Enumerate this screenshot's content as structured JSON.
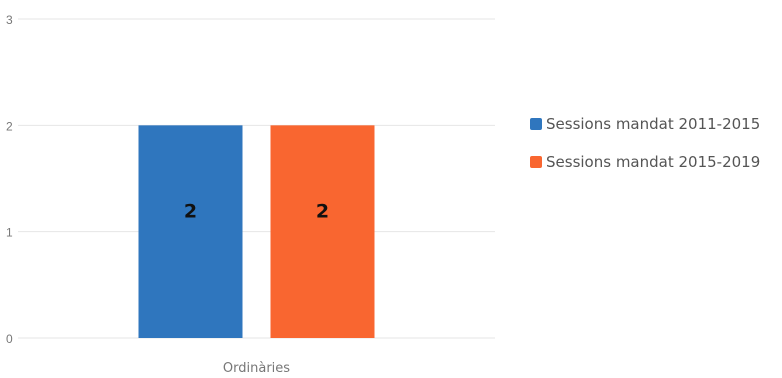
{
  "chart_data": {
    "type": "bar",
    "categories": [
      "Ordinàries"
    ],
    "series": [
      {
        "name": "Sessions mandat 2011-2015",
        "values": [
          2
        ],
        "color": "#2f76be"
      },
      {
        "name": "Sessions mandat 2015-2019",
        "values": [
          2
        ],
        "color": "#f96630"
      }
    ],
    "ylim": [
      0,
      3
    ],
    "yticks": [
      "0",
      "1",
      "2",
      "3"
    ],
    "grid": true,
    "data_labels": true,
    "legend_position": "right"
  }
}
